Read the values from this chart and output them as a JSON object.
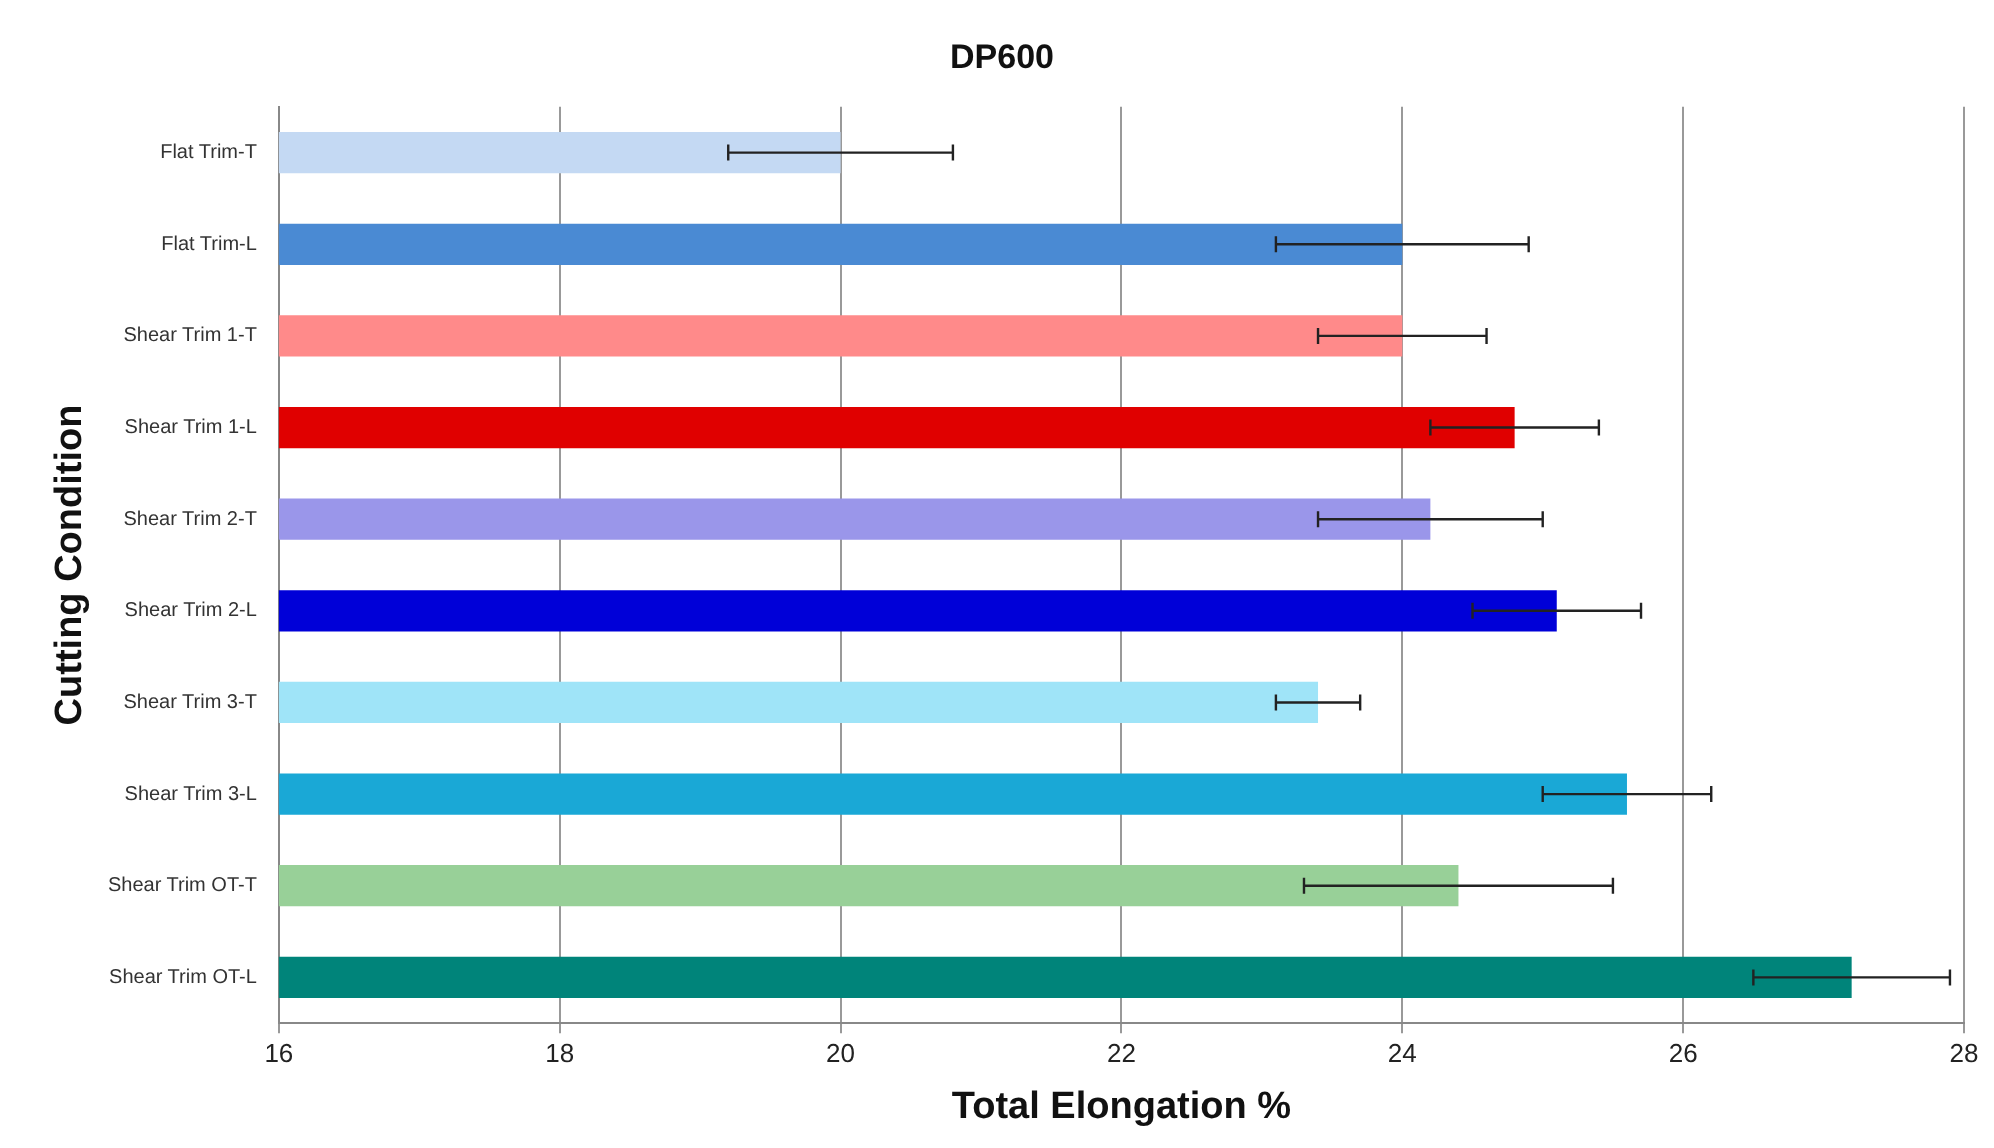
{
  "chart_data": {
    "type": "bar",
    "orientation": "horizontal",
    "title": "DP600",
    "xlabel": "Total Elongation %",
    "ylabel": "Cutting Condition",
    "categories": [
      "Flat Trim-T",
      "Flat Trim-L",
      "Shear Trim 1-T",
      "Shear Trim 1-L",
      "Shear Trim 2-T",
      "Shear Trim 2-L",
      "Shear Trim 3-T",
      "Shear Trim 3-L",
      "Shear Trim OT-T",
      "Shear Trim OT-L"
    ],
    "values": [
      20.0,
      24.0,
      24.0,
      24.8,
      24.2,
      25.1,
      23.4,
      25.6,
      24.4,
      27.2
    ],
    "errors": [
      0.8,
      0.9,
      0.6,
      0.6,
      0.8,
      0.6,
      0.3,
      0.6,
      1.1,
      0.7
    ],
    "colors": [
      "#c4d9f3",
      "#4a8ad3",
      "#ff8a8a",
      "#e00000",
      "#9a96ea",
      "#0000d8",
      "#9fe4f8",
      "#1aa8d6",
      "#98d098",
      "#00847a"
    ],
    "xlim": [
      16,
      28
    ],
    "xticks": [
      16,
      18,
      20,
      22,
      24,
      26,
      28
    ],
    "grid": "x",
    "legend": false
  }
}
